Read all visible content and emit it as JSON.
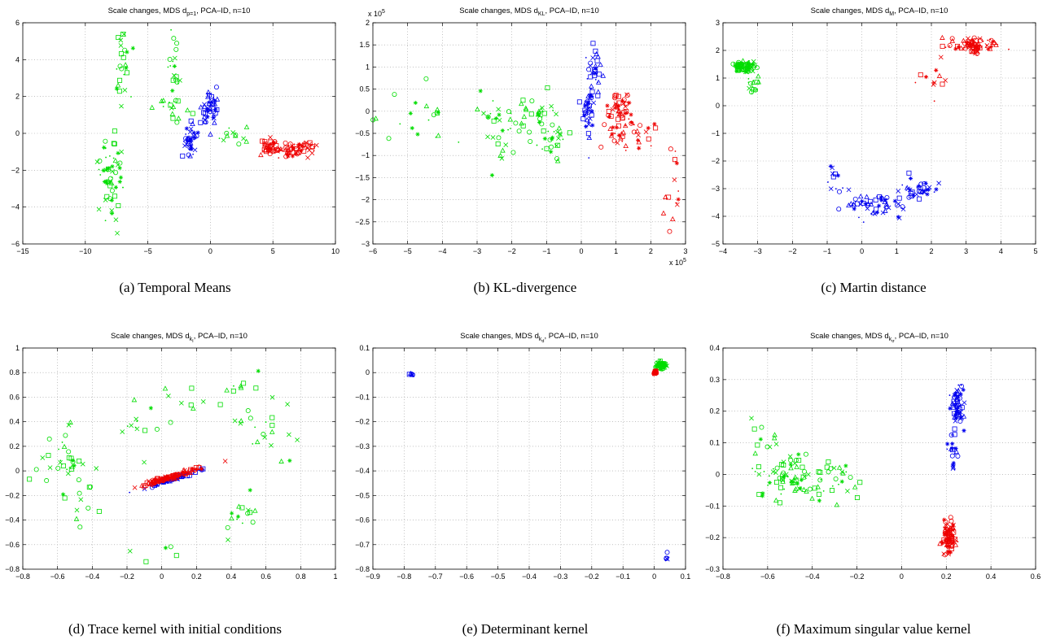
{
  "figure": {
    "captions": [
      "(a) Temporal Means",
      "(b) KL-divergence",
      "(c) Martin distance",
      "(d) Trace kernel with initial conditions",
      "(e) Determinant kernel",
      "(f) Maximum singular value kernel"
    ]
  },
  "series_colors": {
    "class_green": "#00dd00",
    "class_blue": "#0000ee",
    "class_red": "#ee0000"
  },
  "chart_data": [
    {
      "type": "scatter",
      "title": "Scale changes, MDS d_{p=1}, PCA–ID, n=10",
      "title_main": "Scale changes, MDS d",
      "title_sub": "p=1",
      "title_rest": ", PCA–ID, n=10",
      "xlim": [
        -15,
        10
      ],
      "ylim": [
        -6,
        6
      ],
      "xticks": [
        -15,
        -10,
        -5,
        0,
        5,
        10
      ],
      "yticks": [
        -6,
        -4,
        -2,
        0,
        2,
        4,
        6
      ],
      "xtick_labels": [
        "−15",
        "−10",
        "−5",
        "0",
        "5",
        "10"
      ],
      "ytick_labels": [
        "−6",
        "−4",
        "−2",
        "0",
        "2",
        "4",
        "6"
      ],
      "grid": true,
      "series": [
        {
          "color": "#00dd00",
          "clusters": [
            {
              "cx": -8,
              "cy": -2.5,
              "sx": 0.8,
              "sy": 1.6,
              "n": 55,
              "rot": 0
            },
            {
              "cx": -7,
              "cy": 3.5,
              "sx": 0.5,
              "sy": 1.6,
              "n": 25,
              "rot": 0
            },
            {
              "cx": -2.8,
              "cy": 3.5,
              "sx": 0.4,
              "sy": 1.6,
              "n": 20,
              "rot": 0
            },
            {
              "cx": -3.5,
              "cy": 1.2,
              "sx": 0.9,
              "sy": 0.6,
              "n": 15,
              "rot": 0
            },
            {
              "cx": 2.3,
              "cy": -0.2,
              "sx": 1.0,
              "sy": 0.4,
              "n": 12,
              "rot": 0
            }
          ]
        },
        {
          "color": "#0000ee",
          "clusters": [
            {
              "cx": -1.6,
              "cy": -0.3,
              "sx": 0.4,
              "sy": 0.6,
              "n": 40,
              "rot": 0
            },
            {
              "cx": 0.0,
              "cy": 1.3,
              "sx": 0.5,
              "sy": 0.8,
              "n": 45,
              "rot": 0
            }
          ]
        },
        {
          "color": "#ee0000",
          "clusters": [
            {
              "cx": 4.8,
              "cy": -0.8,
              "sx": 0.5,
              "sy": 0.3,
              "n": 40,
              "rot": 0
            },
            {
              "cx": 7.0,
              "cy": -0.8,
              "sx": 1.3,
              "sy": 0.3,
              "n": 60,
              "rot": 0
            }
          ]
        }
      ]
    },
    {
      "type": "scatter",
      "title": "Scale changes, MDS d_{KL}, PCA–ID, n=10",
      "title_main": "Scale changes, MDS d",
      "title_sub": "KL",
      "title_rest": ", PCA–ID, n=10",
      "xlim": [
        -6,
        3
      ],
      "ylim": [
        -3,
        2
      ],
      "xticks": [
        -6,
        -5,
        -4,
        -3,
        -2,
        -1,
        0,
        1,
        2,
        3
      ],
      "yticks": [
        -3,
        -2.5,
        -2,
        -1.5,
        -1,
        -0.5,
        0,
        0.5,
        1,
        1.5,
        2
      ],
      "xtick_labels": [
        "−6",
        "−5",
        "−4",
        "−3",
        "−2",
        "−1",
        "0",
        "1",
        "2",
        "3"
      ],
      "ytick_labels": [
        "−3",
        "−2.5",
        "−2",
        "−1.5",
        "−1",
        "−0.5",
        "0",
        "0.5",
        "1",
        "1.5",
        "2"
      ],
      "x_multiplier": "x 10",
      "y_multiplier": "x 10",
      "multiplier_exponent": "5",
      "grid": true,
      "series": [
        {
          "color": "#00dd00",
          "clusters": [
            {
              "cx": -4.5,
              "cy": -0.2,
              "sx": 1.0,
              "sy": 0.5,
              "n": 20,
              "rot": 0
            },
            {
              "cx": -2.5,
              "cy": -0.3,
              "sx": 0.6,
              "sy": 0.6,
              "n": 25,
              "rot": 0
            },
            {
              "cx": -1.3,
              "cy": -0.1,
              "sx": 0.5,
              "sy": 0.35,
              "n": 35,
              "rot": 0
            },
            {
              "cx": -0.8,
              "cy": -0.7,
              "sx": 0.3,
              "sy": 0.25,
              "n": 20,
              "rot": 0
            }
          ]
        },
        {
          "color": "#0000ee",
          "clusters": [
            {
              "cx": 0.2,
              "cy": 0.0,
              "sx": 0.15,
              "sy": 0.4,
              "n": 40,
              "rot": 0
            },
            {
              "cx": 0.4,
              "cy": 0.9,
              "sx": 0.15,
              "sy": 0.35,
              "n": 30,
              "rot": 0
            }
          ]
        },
        {
          "color": "#ee0000",
          "clusters": [
            {
              "cx": 1.1,
              "cy": 0.1,
              "sx": 0.25,
              "sy": 0.25,
              "n": 40,
              "rot": 0
            },
            {
              "cx": 1.3,
              "cy": -0.5,
              "sx": 0.6,
              "sy": 0.3,
              "n": 40,
              "rot": 0
            },
            {
              "cx": 2.6,
              "cy": -1.7,
              "sx": 0.2,
              "sy": 0.6,
              "n": 15,
              "rot": 0
            }
          ]
        }
      ]
    },
    {
      "type": "scatter",
      "title": "Scale changes, MDS d_M, PCA–ID, n=10",
      "title_main": "Scale changes, MDS d",
      "title_sub": "M",
      "title_rest": ", PCA–ID, n=10",
      "xlim": [
        -4,
        5
      ],
      "ylim": [
        -5,
        3
      ],
      "xticks": [
        -4,
        -3,
        -2,
        -1,
        0,
        1,
        2,
        3,
        4,
        5
      ],
      "yticks": [
        -5,
        -4,
        -3,
        -2,
        -1,
        0,
        1,
        2,
        3
      ],
      "xtick_labels": [
        "−4",
        "−3",
        "−2",
        "−1",
        "0",
        "1",
        "2",
        "3",
        "4",
        "5"
      ],
      "ytick_labels": [
        "−5",
        "−4",
        "−3",
        "−2",
        "−1",
        "0",
        "1",
        "2",
        "3"
      ],
      "grid": true,
      "series": [
        {
          "color": "#00dd00",
          "clusters": [
            {
              "cx": -3.4,
              "cy": 1.4,
              "sx": 0.2,
              "sy": 0.15,
              "n": 70,
              "rot": 0
            },
            {
              "cx": -3.1,
              "cy": 0.7,
              "sx": 0.2,
              "sy": 0.3,
              "n": 15,
              "rot": 0
            }
          ]
        },
        {
          "color": "#0000ee",
          "clusters": [
            {
              "cx": 0.3,
              "cy": -3.6,
              "sx": 0.7,
              "sy": 0.4,
              "n": 50,
              "rot": 0
            },
            {
              "cx": 1.6,
              "cy": -3.0,
              "sx": 0.5,
              "sy": 0.3,
              "n": 40,
              "rot": 0
            },
            {
              "cx": -0.8,
              "cy": -2.8,
              "sx": 0.3,
              "sy": 0.5,
              "n": 12,
              "rot": 0
            }
          ]
        },
        {
          "color": "#ee0000",
          "clusters": [
            {
              "cx": 3.2,
              "cy": 2.2,
              "sx": 0.45,
              "sy": 0.2,
              "n": 80,
              "rot": 0
            },
            {
              "cx": 2.0,
              "cy": 0.9,
              "sx": 0.4,
              "sy": 0.5,
              "n": 12,
              "rot": 0
            }
          ]
        }
      ]
    },
    {
      "type": "scatter",
      "title": "Scale changes, MDS d_{k_I}, PCA–ID, n=10",
      "title_main": "Scale changes, MDS d",
      "title_sub": "k",
      "title_subsub": "I",
      "title_rest": ", PCA–ID, n=10",
      "xlim": [
        -0.8,
        1
      ],
      "ylim": [
        -0.8,
        1
      ],
      "xticks": [
        -0.8,
        -0.6,
        -0.4,
        -0.2,
        0,
        0.2,
        0.4,
        0.6,
        0.8,
        1
      ],
      "yticks": [
        -0.8,
        -0.6,
        -0.4,
        -0.2,
        0,
        0.2,
        0.4,
        0.6,
        0.8,
        1
      ],
      "xtick_labels": [
        "−0.8",
        "−0.6",
        "−0.4",
        "−0.2",
        "0",
        "0.2",
        "0.4",
        "0.6",
        "0.8",
        "1"
      ],
      "ytick_labels": [
        "−0.8",
        "−0.6",
        "−0.4",
        "−0.2",
        "0",
        "0.2",
        "0.4",
        "0.6",
        "0.8",
        "1"
      ],
      "grid": true,
      "series": [
        {
          "color": "#00dd00",
          "clusters": [
            {
              "cx": -0.55,
              "cy": 0.1,
              "sx": 0.12,
              "sy": 0.2,
              "n": 30,
              "rot": 0
            },
            {
              "cx": -0.45,
              "cy": -0.2,
              "sx": 0.1,
              "sy": 0.2,
              "n": 12,
              "rot": 0
            },
            {
              "cx": -0.15,
              "cy": 0.4,
              "sx": 0.1,
              "sy": 0.2,
              "n": 12,
              "rot": 0
            },
            {
              "cx": 0.1,
              "cy": 0.55,
              "sx": 0.1,
              "sy": 0.15,
              "n": 8,
              "rot": 0
            },
            {
              "cx": 0.45,
              "cy": 0.55,
              "sx": 0.1,
              "sy": 0.2,
              "n": 15,
              "rot": 0
            },
            {
              "cx": 0.65,
              "cy": 0.25,
              "sx": 0.12,
              "sy": 0.25,
              "n": 15,
              "rot": 0
            },
            {
              "cx": 0.45,
              "cy": -0.35,
              "sx": 0.08,
              "sy": 0.15,
              "n": 15,
              "rot": 0
            },
            {
              "cx": 0.05,
              "cy": -0.7,
              "sx": 0.12,
              "sy": 0.08,
              "n": 5,
              "rot": 0
            }
          ]
        },
        {
          "color": "#0000ee",
          "clusters": [
            {
              "cx": 0.05,
              "cy": -0.07,
              "sx": 0.12,
              "sy": 0.01,
              "n": 80,
              "rot": 0.42
            }
          ]
        },
        {
          "color": "#ee0000",
          "clusters": [
            {
              "cx": 0.05,
              "cy": -0.05,
              "sx": 0.12,
              "sy": 0.012,
              "n": 100,
              "rot": 0.42
            }
          ]
        }
      ]
    },
    {
      "type": "scatter",
      "title": "Scale changes, MDS d_{k_d}, PCA–ID, n=10",
      "title_main": "Scale changes, MDS d",
      "title_sub": "k",
      "title_subsub": "d",
      "title_rest": ", PCA–ID, n=10",
      "xlim": [
        -0.9,
        0.1
      ],
      "ylim": [
        -0.8,
        0.1
      ],
      "xticks": [
        -0.9,
        -0.8,
        -0.7,
        -0.6,
        -0.5,
        -0.4,
        -0.3,
        -0.2,
        -0.1,
        0,
        0.1
      ],
      "yticks": [
        -0.8,
        -0.7,
        -0.6,
        -0.5,
        -0.4,
        -0.3,
        -0.2,
        -0.1,
        0,
        0.1
      ],
      "xtick_labels": [
        "−0.9",
        "−0.8",
        "−0.7",
        "−0.6",
        "−0.5",
        "−0.4",
        "−0.3",
        "−0.2",
        "−0.1",
        "0",
        "0.1"
      ],
      "ytick_labels": [
        "−0.8",
        "−0.7",
        "−0.6",
        "−0.5",
        "−0.4",
        "−0.3",
        "−0.2",
        "−0.1",
        "0",
        "0.1"
      ],
      "grid": true,
      "series": [
        {
          "color": "#00dd00",
          "clusters": [
            {
              "cx": 0.02,
              "cy": 0.03,
              "sx": 0.012,
              "sy": 0.012,
              "n": 60,
              "rot": 0.8
            }
          ]
        },
        {
          "color": "#0000ee",
          "clusters": [
            {
              "cx": -0.78,
              "cy": -0.008,
              "sx": 0.012,
              "sy": 0.002,
              "n": 6,
              "rot": 0
            },
            {
              "cx": 0.04,
              "cy": -0.75,
              "sx": 0.002,
              "sy": 0.015,
              "n": 5,
              "rot": 0
            }
          ]
        },
        {
          "color": "#ee0000",
          "clusters": [
            {
              "cx": 0.003,
              "cy": 0.001,
              "sx": 0.003,
              "sy": 0.003,
              "n": 30,
              "rot": 0
            }
          ]
        }
      ]
    },
    {
      "type": "scatter",
      "title": "Scale changes, MDS d_{k_σ}, PCA–ID, n=10",
      "title_main": "Scale changes, MDS d",
      "title_sub": "k",
      "title_subsub": "σ",
      "title_rest": ", PCA–ID, n=10",
      "xlim": [
        -0.8,
        0.6
      ],
      "ylim": [
        -0.3,
        0.4
      ],
      "xticks": [
        -0.8,
        -0.6,
        -0.4,
        -0.2,
        0,
        0.2,
        0.4,
        0.6
      ],
      "yticks": [
        -0.3,
        -0.2,
        -0.1,
        0,
        0.1,
        0.2,
        0.3,
        0.4
      ],
      "xtick_labels": [
        "−0.8",
        "−0.6",
        "−0.4",
        "−0.2",
        "0",
        "0.2",
        "0.4",
        "0.6"
      ],
      "ytick_labels": [
        "−0.3",
        "−0.2",
        "−0.1",
        "0",
        "0.1",
        "0.2",
        "0.3",
        "0.4"
      ],
      "grid": true,
      "series": [
        {
          "color": "#00dd00",
          "clusters": [
            {
              "cx": -0.5,
              "cy": 0.0,
              "sx": 0.1,
              "sy": 0.06,
              "n": 70,
              "rot": 0
            },
            {
              "cx": -0.3,
              "cy": -0.02,
              "sx": 0.08,
              "sy": 0.05,
              "n": 30,
              "rot": 0
            },
            {
              "cx": -0.6,
              "cy": 0.12,
              "sx": 0.05,
              "sy": 0.04,
              "n": 10,
              "rot": 0
            }
          ]
        },
        {
          "color": "#0000ee",
          "clusters": [
            {
              "cx": 0.25,
              "cy": 0.22,
              "sx": 0.02,
              "sy": 0.05,
              "n": 60,
              "rot": 0
            },
            {
              "cx": 0.23,
              "cy": 0.06,
              "sx": 0.02,
              "sy": 0.06,
              "n": 20,
              "rot": 0
            }
          ]
        },
        {
          "color": "#ee0000",
          "clusters": [
            {
              "cx": 0.21,
              "cy": -0.2,
              "sx": 0.02,
              "sy": 0.04,
              "n": 90,
              "rot": 0
            }
          ]
        }
      ]
    }
  ]
}
